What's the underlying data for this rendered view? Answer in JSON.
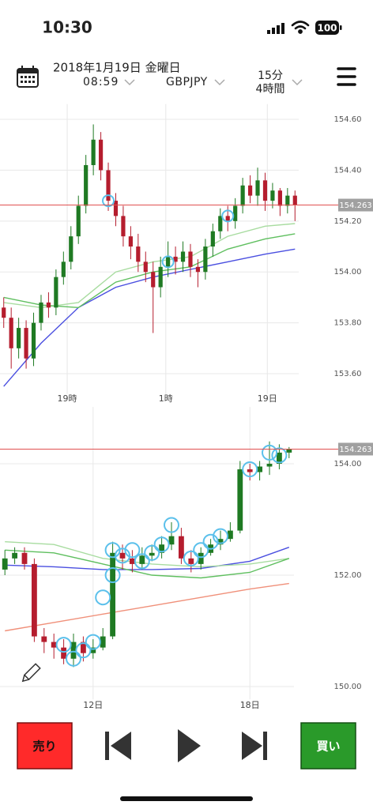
{
  "status_bar": {
    "time": "10:30",
    "battery": "100"
  },
  "header": {
    "date": "2018年1月19日 金曜日",
    "time": "08:59",
    "symbol": "GBPJPY",
    "timeframes": [
      "15分",
      "4時間"
    ]
  },
  "buttons": {
    "sell": "売り",
    "buy": "買い"
  },
  "chart_data": [
    {
      "type": "candlestick",
      "up_color": "#1f7a23",
      "down_color": "#b51d2e",
      "open": [
        153.86,
        153.82,
        153.7,
        153.78,
        153.66,
        153.8,
        153.88,
        153.86,
        153.98,
        154.04,
        154.14,
        154.26,
        154.42,
        154.52,
        154.4,
        154.28,
        154.22,
        154.14,
        154.1,
        154.04,
        154.0,
        153.94,
        154.02,
        154.06,
        154.04,
        154.08,
        154.02,
        154.0,
        154.1,
        154.16,
        154.22,
        154.2,
        154.26,
        154.34,
        154.3,
        154.36,
        154.28,
        154.32,
        154.26,
        154.3
      ],
      "high": [
        153.9,
        153.86,
        153.82,
        153.81,
        153.84,
        153.91,
        153.92,
        154.01,
        154.08,
        154.18,
        154.3,
        154.46,
        154.58,
        154.55,
        154.43,
        154.31,
        154.26,
        154.18,
        154.15,
        154.08,
        154.04,
        154.06,
        154.12,
        154.1,
        154.12,
        154.11,
        154.05,
        154.13,
        154.19,
        154.25,
        154.26,
        154.29,
        154.37,
        154.38,
        154.41,
        154.39,
        154.35,
        154.33,
        154.33,
        154.32
      ],
      "low": [
        153.78,
        153.62,
        153.66,
        153.62,
        153.63,
        153.77,
        153.82,
        153.83,
        153.95,
        154.01,
        154.11,
        154.23,
        154.38,
        154.36,
        154.24,
        154.18,
        154.1,
        154.05,
        154.0,
        153.96,
        153.76,
        153.9,
        153.98,
        153.99,
        154.0,
        153.98,
        153.94,
        153.97,
        154.06,
        154.13,
        154.16,
        154.17,
        154.23,
        154.27,
        154.26,
        154.24,
        154.25,
        154.22,
        154.23,
        154.2
      ],
      "close": [
        153.82,
        153.7,
        153.78,
        153.66,
        153.8,
        153.88,
        153.86,
        153.98,
        154.04,
        154.14,
        154.26,
        154.42,
        154.52,
        154.4,
        154.28,
        154.22,
        154.14,
        154.1,
        154.04,
        154.0,
        153.94,
        154.02,
        154.06,
        154.04,
        154.08,
        154.02,
        154.0,
        154.1,
        154.16,
        154.22,
        154.2,
        154.26,
        154.34,
        154.3,
        154.36,
        154.28,
        154.32,
        154.26,
        154.3,
        154.263
      ],
      "lines": [
        {
          "color": "#4a4fe0",
          "x": [
            0,
            5,
            10,
            15,
            20,
            25,
            30,
            35,
            39
          ],
          "values": [
            153.55,
            153.72,
            153.86,
            153.94,
            153.98,
            154.01,
            154.04,
            154.07,
            154.09
          ]
        },
        {
          "color": "#a8dca0",
          "x": [
            0,
            5,
            10,
            15,
            20,
            25,
            30,
            35,
            39
          ],
          "values": [
            153.88,
            153.86,
            153.88,
            154.0,
            154.04,
            154.06,
            154.14,
            154.18,
            154.19
          ]
        },
        {
          "color": "#5fbf5f",
          "x": [
            0,
            5,
            10,
            15,
            20,
            25,
            30,
            35,
            39
          ],
          "values": [
            153.9,
            153.87,
            153.86,
            153.96,
            154.0,
            154.02,
            154.09,
            154.13,
            154.15
          ]
        }
      ],
      "signals": {
        "color": "#5bc0eb",
        "x": [
          14,
          22,
          30
        ],
        "values": [
          154.28,
          154.04,
          154.22
        ]
      },
      "price_line": 154.263,
      "grid": true,
      "xlim": [
        -0.5,
        39.5
      ],
      "xticks": [
        {
          "value": 8.5,
          "label": "19時"
        },
        {
          "value": 21.7,
          "label": "1時"
        },
        {
          "value": 35.3,
          "label": "19日"
        }
      ],
      "ylim": [
        153.52,
        154.66
      ],
      "yticks": [
        {
          "value": 153.6,
          "label": "153.60"
        },
        {
          "value": 153.8,
          "label": "153.80"
        },
        {
          "value": 154.0,
          "label": "154.00"
        },
        {
          "value": 154.2,
          "label": "154.20"
        },
        {
          "value": 154.4,
          "label": "154.40"
        },
        {
          "value": 154.6,
          "label": "154.60"
        }
      ]
    },
    {
      "type": "candlestick",
      "up_color": "#1f7a23",
      "down_color": "#b51d2e",
      "open": [
        152.1,
        152.3,
        152.4,
        152.2,
        150.9,
        150.8,
        150.7,
        150.5,
        150.8,
        150.6,
        150.7,
        150.9,
        152.4,
        152.3,
        152.2,
        152.35,
        152.4,
        152.55,
        152.7,
        152.3,
        152.2,
        152.4,
        152.55,
        152.65,
        152.8,
        153.9,
        153.85,
        153.95,
        154.0,
        154.2
      ],
      "high": [
        152.45,
        152.5,
        152.5,
        152.3,
        151.05,
        150.95,
        150.85,
        150.95,
        150.9,
        150.85,
        151.05,
        152.6,
        152.55,
        152.45,
        152.5,
        152.55,
        152.7,
        152.95,
        152.85,
        152.45,
        152.5,
        152.65,
        152.8,
        152.95,
        154.05,
        154.0,
        154.05,
        154.4,
        154.35,
        154.3
      ],
      "low": [
        152.0,
        152.2,
        152.1,
        150.8,
        150.6,
        150.5,
        150.4,
        150.35,
        150.45,
        150.5,
        150.65,
        150.85,
        152.1,
        152.05,
        152.1,
        152.25,
        152.3,
        152.45,
        152.2,
        152.05,
        152.1,
        152.35,
        152.45,
        152.6,
        152.75,
        153.7,
        153.7,
        153.8,
        153.9,
        154.1
      ],
      "close": [
        152.3,
        152.4,
        152.2,
        150.9,
        150.8,
        150.7,
        150.5,
        150.8,
        150.6,
        150.7,
        150.9,
        152.4,
        152.3,
        152.2,
        152.35,
        152.4,
        152.55,
        152.7,
        152.3,
        152.2,
        152.4,
        152.55,
        152.65,
        152.8,
        153.9,
        153.85,
        153.95,
        154.0,
        154.2,
        154.263
      ],
      "lines": [
        {
          "color": "#4a4fe0",
          "x": [
            0,
            5,
            10,
            15,
            20,
            25,
            29
          ],
          "values": [
            152.18,
            152.15,
            152.1,
            152.1,
            152.12,
            152.25,
            152.5
          ]
        },
        {
          "color": "#a8dca0",
          "x": [
            0,
            5,
            10,
            15,
            20,
            25,
            29
          ],
          "values": [
            152.6,
            152.55,
            152.3,
            152.2,
            152.15,
            152.2,
            152.3
          ]
        },
        {
          "color": "#5fbf5f",
          "x": [
            0,
            5,
            10,
            15,
            20,
            25,
            29
          ],
          "values": [
            152.45,
            152.4,
            152.2,
            152.0,
            151.95,
            152.05,
            152.3
          ]
        },
        {
          "color": "#f0907a",
          "x": [
            0,
            5,
            10,
            15,
            20,
            25,
            29
          ],
          "values": [
            151.0,
            151.15,
            151.3,
            151.45,
            151.6,
            151.75,
            151.85
          ]
        }
      ],
      "signals": {
        "color": "#5bc0eb",
        "x": [
          6,
          7,
          8,
          9,
          10,
          11,
          11,
          12,
          13,
          14,
          15,
          16,
          17,
          19,
          20,
          21,
          22,
          25,
          27,
          28
        ],
        "values": [
          150.75,
          150.5,
          150.65,
          150.8,
          151.6,
          152.0,
          152.45,
          152.35,
          152.45,
          152.25,
          152.4,
          152.55,
          152.9,
          152.3,
          152.45,
          152.6,
          152.7,
          153.9,
          154.2,
          154.15
        ]
      },
      "price_line": 154.263,
      "grid": true,
      "xlim": [
        -0.5,
        29.5
      ],
      "xticks": [
        {
          "value": 9,
          "label": "12日"
        },
        {
          "value": 25,
          "label": "18日"
        }
      ],
      "ylim": [
        149.77,
        155.02
      ],
      "yticks": [
        {
          "value": 150,
          "label": "150.00"
        },
        {
          "value": 152,
          "label": "152.00"
        },
        {
          "value": 154,
          "label": "154.00"
        }
      ]
    }
  ]
}
